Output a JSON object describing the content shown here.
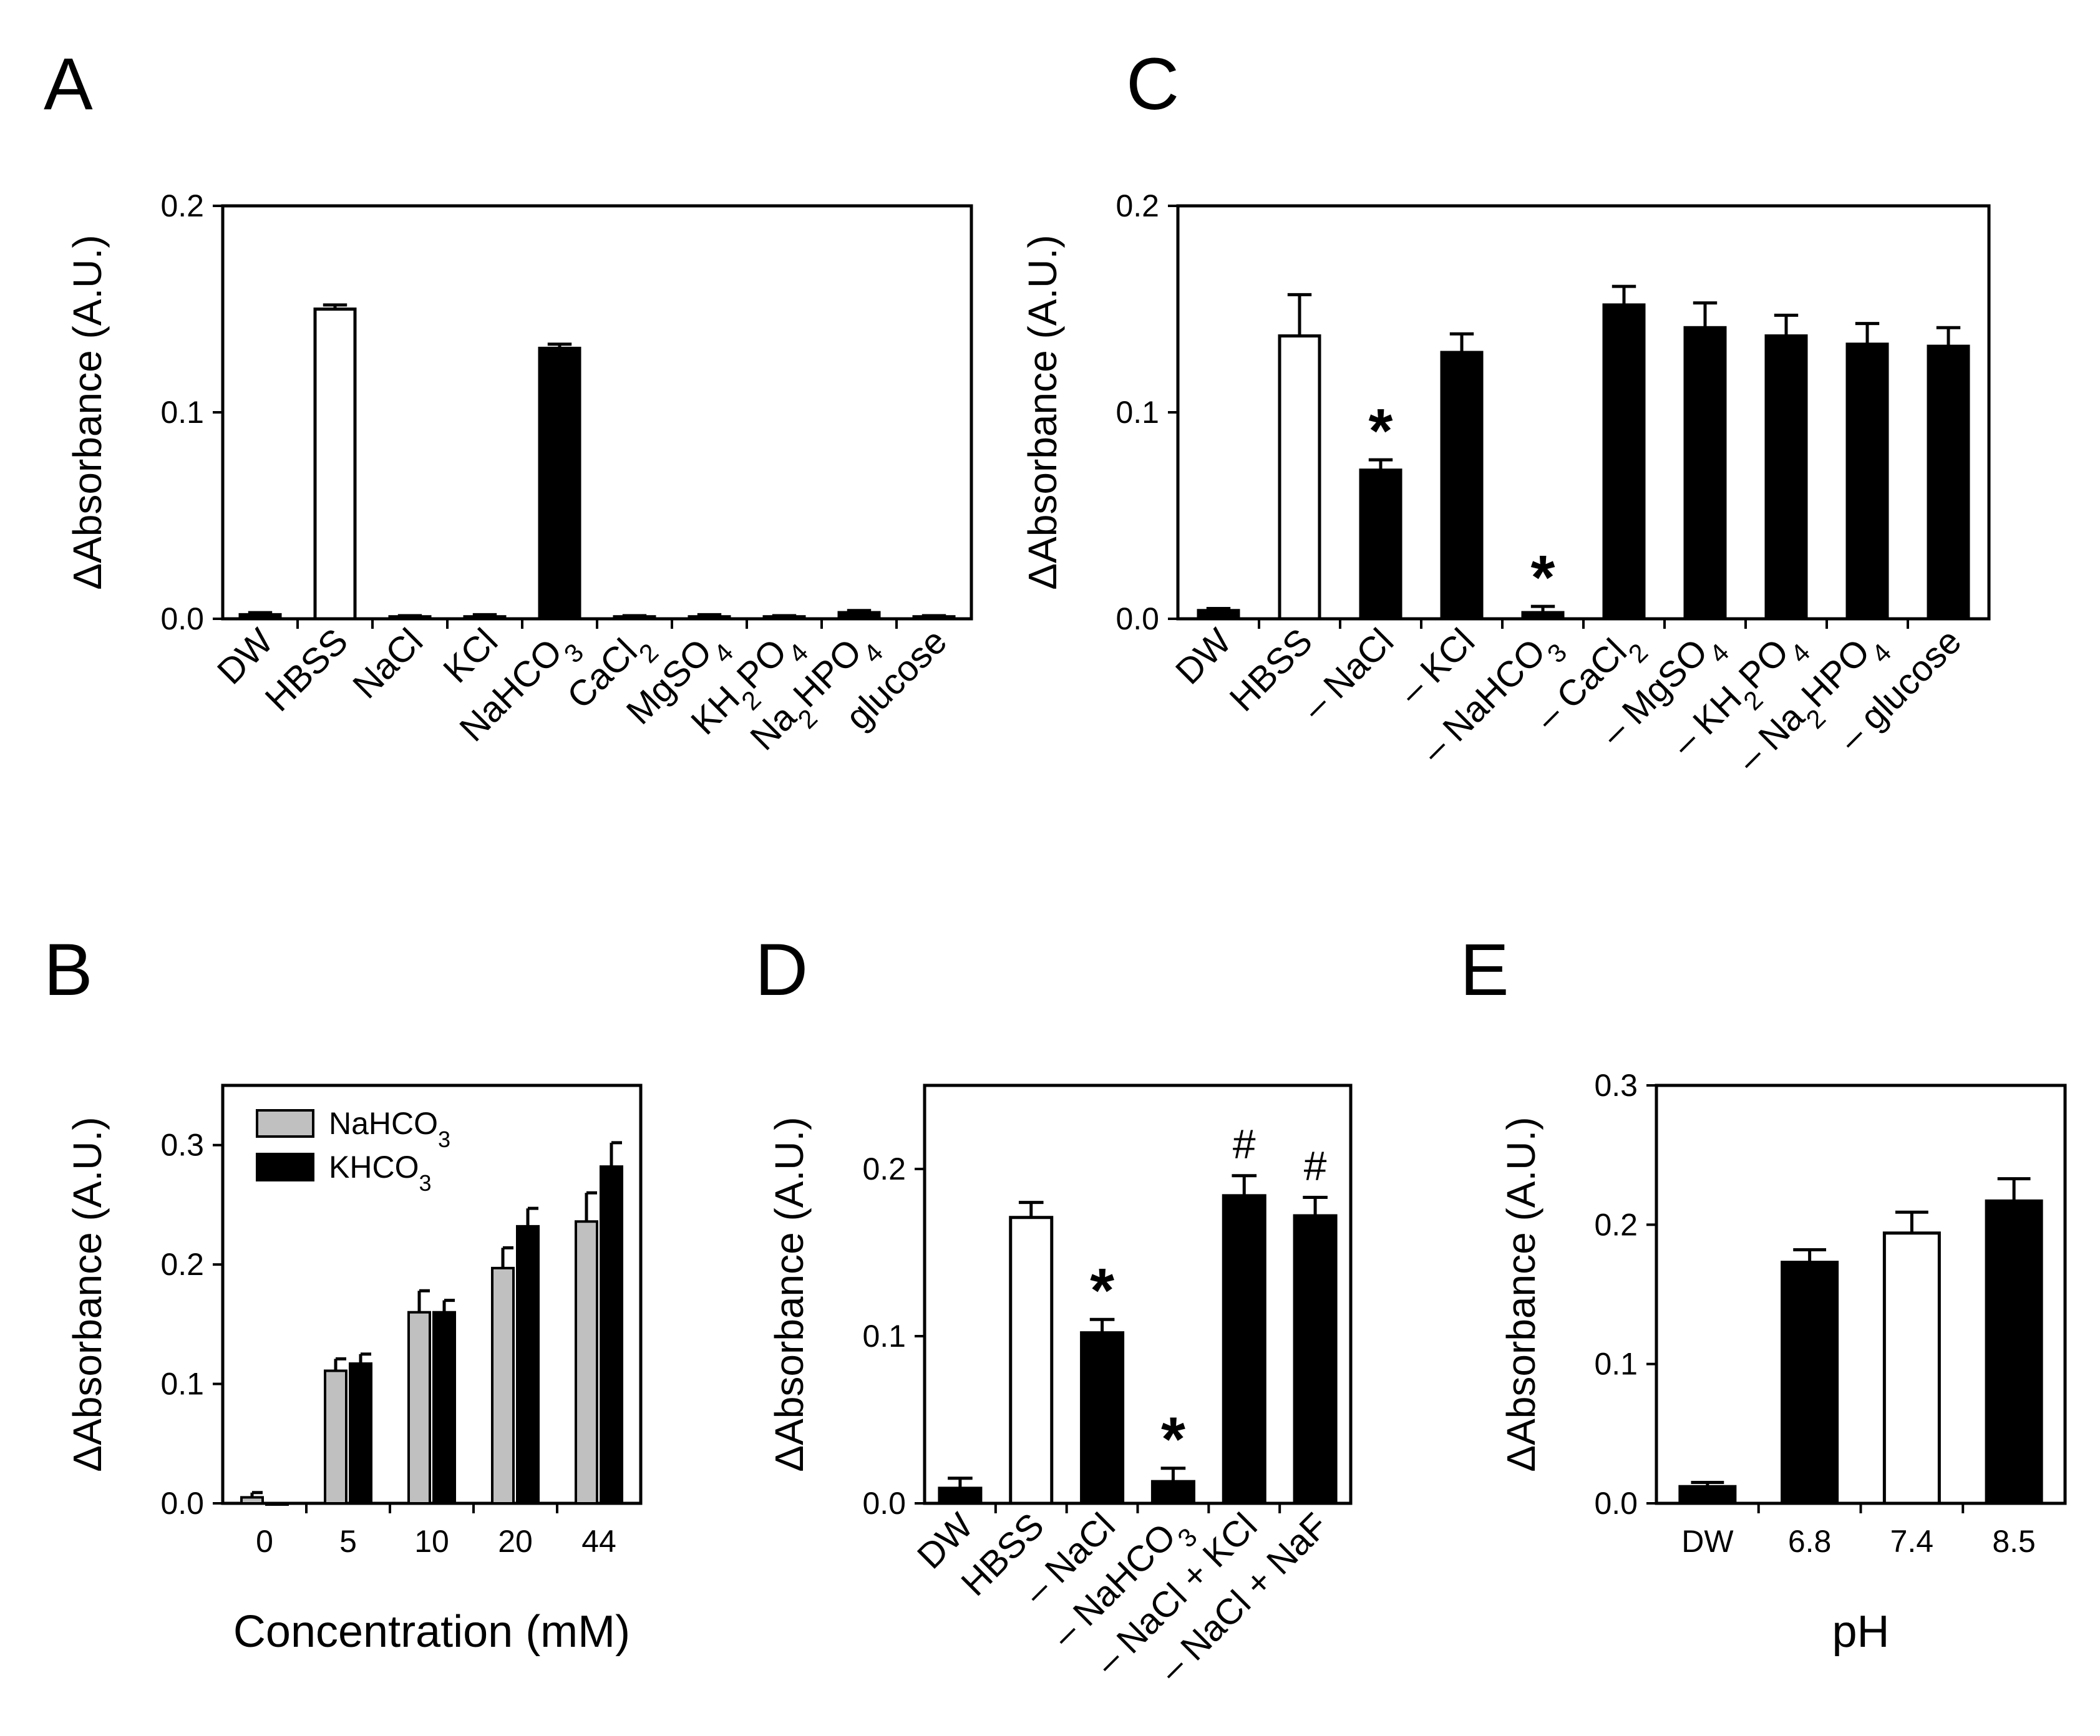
{
  "panels": [
    {
      "id": "A",
      "letter": "A",
      "chart_data": {
        "type": "bar",
        "ylabel": "ΔAbsorbance (A.U.)",
        "xlabel": "",
        "ylim": [
          0,
          0.2
        ],
        "yticks": [
          0.0,
          0.1,
          0.2
        ],
        "ytick_labels": [
          "0.0",
          "0.1",
          "0.2"
        ],
        "categories": [
          {
            "text": "DW"
          },
          {
            "text": "HBSS"
          },
          {
            "text": "NaCl"
          },
          {
            "text": "KCl"
          },
          {
            "text": "NaHCO",
            "sub": "3"
          },
          {
            "text": "CaCl",
            "sub": "2"
          },
          {
            "text": "MgSO",
            "sub": "4"
          },
          {
            "text": "KH",
            "sub": "2",
            "text2": "PO",
            "sub2": "4"
          },
          {
            "text": "Na",
            "sub": "2",
            "text2": "HPO",
            "sub2": "4"
          },
          {
            "text": "glucose"
          }
        ],
        "values": [
          0.002,
          0.15,
          0.001,
          0.001,
          0.131,
          0.001,
          0.001,
          0.001,
          0.003,
          0.001
        ],
        "errors": [
          0.001,
          0.002,
          0.0005,
          0.001,
          0.002,
          0.0005,
          0.001,
          0.0005,
          0.001,
          0.0005
        ],
        "fills": [
          "#000000",
          "#ffffff",
          "#000000",
          "#000000",
          "#000000",
          "#000000",
          "#000000",
          "#000000",
          "#000000",
          "#000000"
        ],
        "annotations": [
          "",
          "",
          "",
          "",
          "",
          "",
          "",
          "",
          "",
          ""
        ]
      }
    },
    {
      "id": "C",
      "letter": "C",
      "chart_data": {
        "type": "bar",
        "ylabel": "ΔAbsorbance (A.U.)",
        "xlabel": "",
        "ylim": [
          0,
          0.2
        ],
        "yticks": [
          0.0,
          0.1,
          0.2
        ],
        "ytick_labels": [
          "0.0",
          "0.1",
          "0.2"
        ],
        "categories": [
          {
            "text": "DW"
          },
          {
            "text": "HBSS"
          },
          {
            "text": "– NaCl"
          },
          {
            "text": "– KCl"
          },
          {
            "text": "– NaHCO",
            "sub": "3"
          },
          {
            "text": "– CaCl",
            "sub": "2"
          },
          {
            "text": "– MgSO",
            "sub": "4"
          },
          {
            "text": "– KH",
            "sub": "2",
            "text2": "PO",
            "sub2": "4"
          },
          {
            "text": "– Na",
            "sub": "2",
            "text2": "HPO",
            "sub2": "4"
          },
          {
            "text": "– glucose"
          }
        ],
        "values": [
          0.004,
          0.137,
          0.072,
          0.129,
          0.003,
          0.152,
          0.141,
          0.137,
          0.133,
          0.132
        ],
        "errors": [
          0.001,
          0.02,
          0.005,
          0.009,
          0.003,
          0.009,
          0.012,
          0.01,
          0.01,
          0.009
        ],
        "fills": [
          "#000000",
          "#ffffff",
          "#000000",
          "#000000",
          "#000000",
          "#000000",
          "#000000",
          "#000000",
          "#000000",
          "#000000"
        ],
        "annotations": [
          "",
          "",
          "*",
          "",
          "*",
          "",
          "",
          "",
          "",
          ""
        ]
      }
    },
    {
      "id": "B",
      "letter": "B",
      "chart_data": {
        "type": "bar",
        "ylabel": "ΔAbsorbance (A.U.)",
        "xlabel": "Concentration (mM)",
        "ylim": [
          0,
          0.35
        ],
        "yticks": [
          0.0,
          0.1,
          0.2,
          0.3
        ],
        "ytick_labels": [
          "0.0",
          "0.1",
          "0.2",
          "0.3"
        ],
        "categories": [
          "0",
          "5",
          "10",
          "20",
          "44"
        ],
        "legend_position": "top-left",
        "series": [
          {
            "name": "NaHCO",
            "sub": "3",
            "color": "#c0c0c0",
            "values": [
              0.005,
              0.111,
              0.16,
              0.197,
              0.236
            ],
            "errors": [
              0.004,
              0.01,
              0.018,
              0.017,
              0.024
            ]
          },
          {
            "name": "KHCO",
            "sub": "3",
            "color": "#000000",
            "values": [
              0.0,
              0.117,
              0.16,
              0.232,
              0.282
            ],
            "errors": [
              0.0,
              0.008,
              0.01,
              0.015,
              0.02
            ]
          }
        ]
      }
    },
    {
      "id": "D",
      "letter": "D",
      "chart_data": {
        "type": "bar",
        "ylabel": "ΔAbsorbance (A.U.)",
        "xlabel": "",
        "ylim": [
          0,
          0.25
        ],
        "yticks": [
          0.0,
          0.1,
          0.2
        ],
        "ytick_labels": [
          "0.0",
          "0.1",
          "0.2"
        ],
        "categories": [
          {
            "text": "DW"
          },
          {
            "text": "HBSS"
          },
          {
            "text": "– NaCl"
          },
          {
            "text": "– NaHCO",
            "sub": "3"
          },
          {
            "text": "– NaCl + KCl"
          },
          {
            "text": "– NaCl + NaF"
          }
        ],
        "values": [
          0.009,
          0.171,
          0.102,
          0.013,
          0.184,
          0.172
        ],
        "errors": [
          0.006,
          0.009,
          0.008,
          0.008,
          0.012,
          0.011
        ],
        "fills": [
          "#000000",
          "#ffffff",
          "#000000",
          "#000000",
          "#000000",
          "#000000"
        ],
        "annotations": [
          "",
          "",
          "*",
          "*",
          "#",
          "#"
        ]
      }
    },
    {
      "id": "E",
      "letter": "E",
      "chart_data": {
        "type": "bar",
        "ylabel": "ΔAbsorbance (A.U.)",
        "xlabel": "pH",
        "ylim": [
          0,
          0.3
        ],
        "yticks": [
          0.0,
          0.1,
          0.2,
          0.3
        ],
        "ytick_labels": [
          "0.0",
          "0.1",
          "0.2",
          "0.3"
        ],
        "categories": [
          "DW",
          "6.8",
          "7.4",
          "8.5"
        ],
        "values": [
          0.012,
          0.173,
          0.194,
          0.217
        ],
        "errors": [
          0.003,
          0.009,
          0.015,
          0.016
        ],
        "fills": [
          "#000000",
          "#000000",
          "#ffffff",
          "#000000"
        ],
        "annotations": [
          "",
          "",
          "",
          ""
        ]
      }
    }
  ]
}
